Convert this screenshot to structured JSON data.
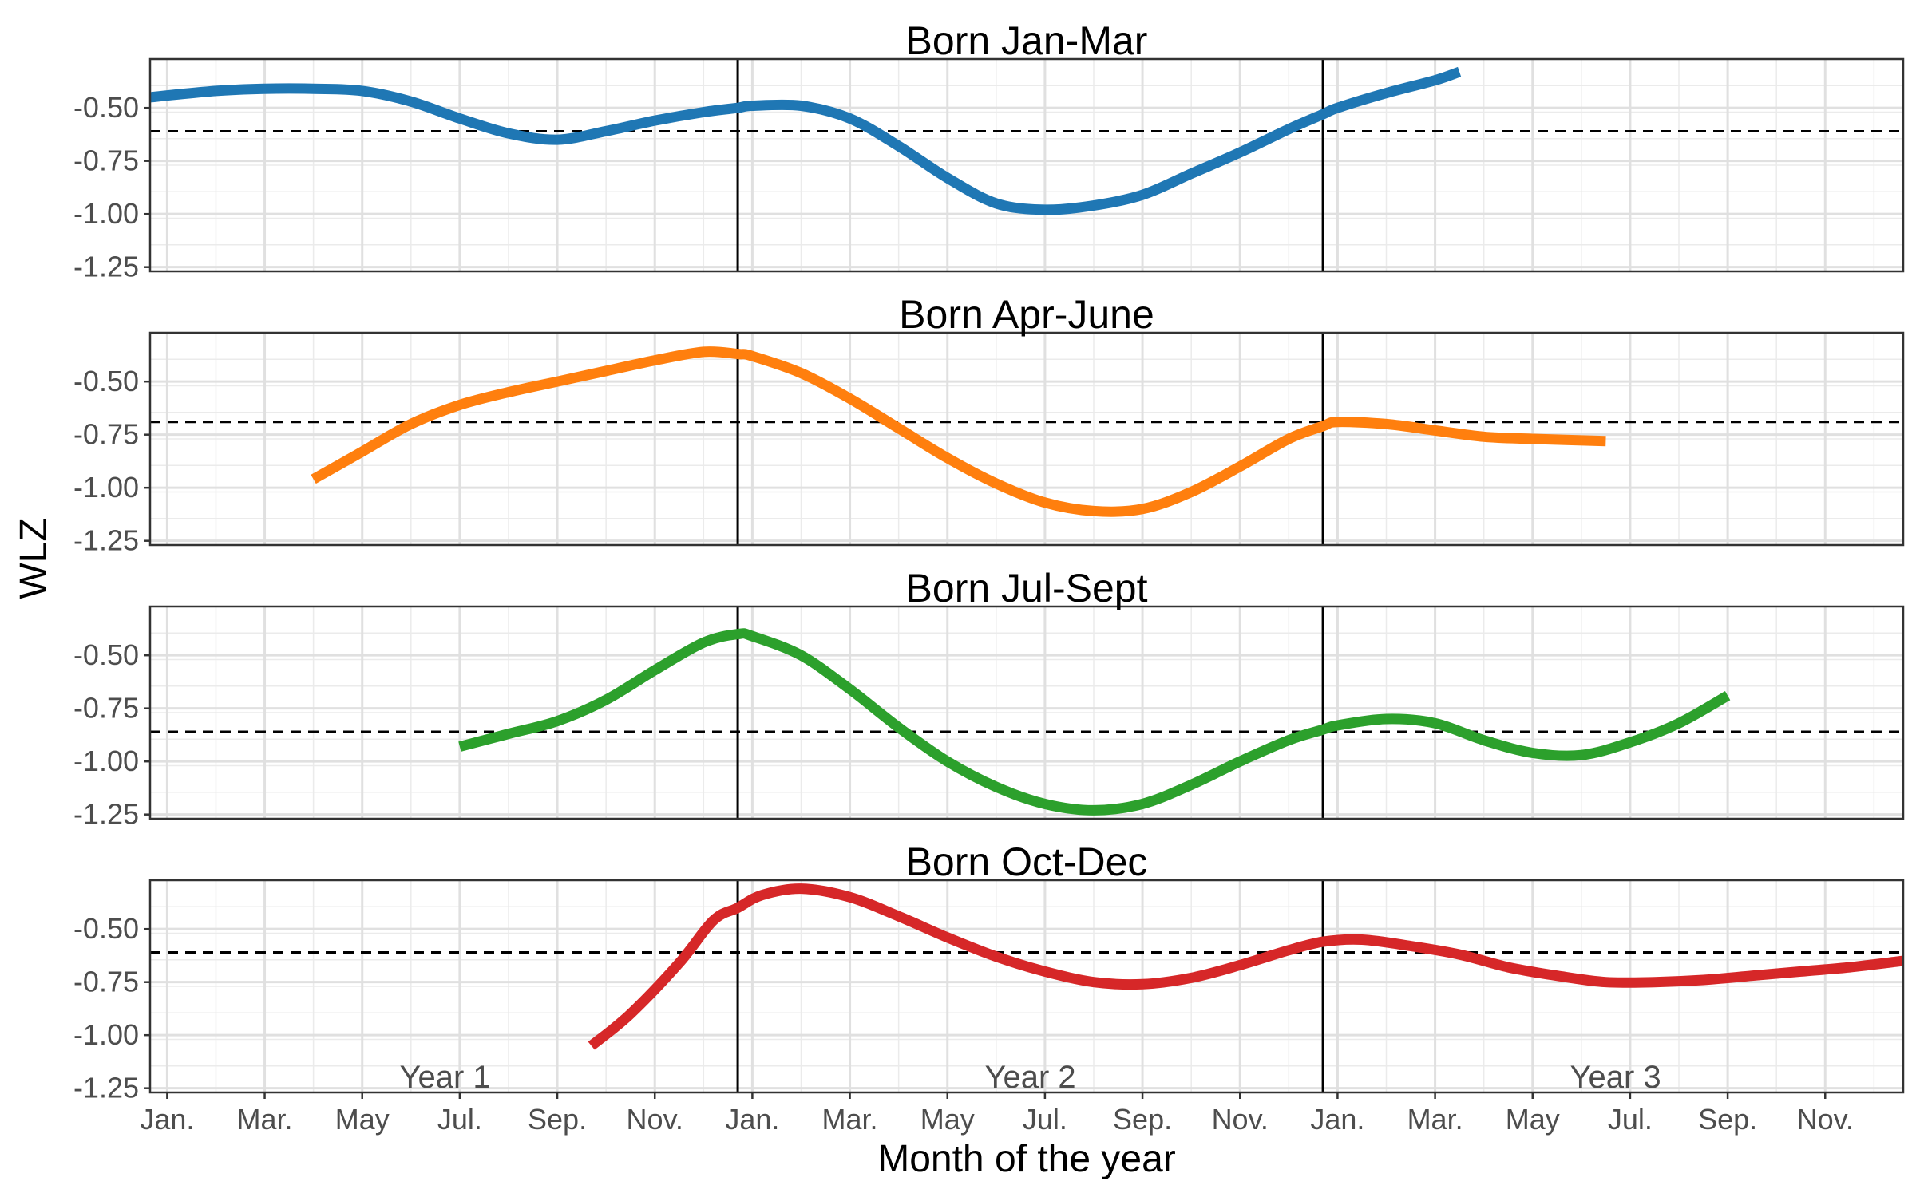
{
  "chart_data": {
    "type": "line",
    "xlabel": "Month of the year",
    "ylabel": "WLZ",
    "x_unit": "months since January of Year 1",
    "xlim": [
      -0.35,
      35.6
    ],
    "ylim": [
      -1.27,
      -0.27
    ],
    "yticks": [
      -1.25,
      -1.0,
      -0.75,
      -0.5
    ],
    "ytick_labels": [
      "-1.25",
      "-1.00",
      "-0.75",
      "-0.50"
    ],
    "xticks": [
      0,
      2,
      4,
      6,
      8,
      10,
      12,
      14,
      16,
      18,
      20,
      22,
      24,
      26,
      28,
      30,
      32,
      34
    ],
    "xtick_labels": [
      "Jan.",
      "Mar.",
      "May",
      "Jul.",
      "Sep.",
      "Nov.",
      "Jan.",
      "Mar.",
      "May",
      "Jul.",
      "Sep.",
      "Nov.",
      "Jan.",
      "Mar.",
      "May",
      "Jul.",
      "Sep.",
      "Nov."
    ],
    "year_boundaries": [
      11.7,
      23.7
    ],
    "year_labels": [
      {
        "text": "Year 1",
        "x": 5.7
      },
      {
        "text": "Year 2",
        "x": 17.7
      },
      {
        "text": "Year 3",
        "x": 29.7
      }
    ],
    "grid": true,
    "panels": [
      {
        "title": "Born Jan-Mar",
        "color": "#1f77b4",
        "mean_line": -0.61,
        "x": [
          -0.35,
          1,
          2,
          3,
          4,
          5,
          6,
          7,
          8,
          9,
          10,
          11,
          11.7,
          12,
          13,
          14,
          15,
          16,
          17,
          18,
          19,
          20,
          21,
          22,
          23,
          23.7,
          24,
          25,
          26,
          26.5
        ],
        "y": [
          -0.45,
          -0.42,
          -0.41,
          -0.41,
          -0.42,
          -0.47,
          -0.55,
          -0.62,
          -0.65,
          -0.61,
          -0.56,
          -0.52,
          -0.5,
          -0.49,
          -0.49,
          -0.55,
          -0.68,
          -0.83,
          -0.95,
          -0.98,
          -0.96,
          -0.91,
          -0.81,
          -0.71,
          -0.6,
          -0.53,
          -0.5,
          -0.43,
          -0.37,
          -0.33
        ]
      },
      {
        "title": "Born Apr-June",
        "color": "#ff7f0e",
        "mean_line": -0.69,
        "x": [
          3,
          4,
          5,
          6,
          7,
          8,
          9,
          10,
          11,
          11.7,
          12,
          13,
          14,
          15,
          16,
          17,
          18,
          19,
          20,
          21,
          22,
          23,
          23.7,
          24,
          25,
          26,
          27,
          28,
          29.5
        ],
        "y": [
          -0.96,
          -0.83,
          -0.7,
          -0.61,
          -0.55,
          -0.5,
          -0.45,
          -0.4,
          -0.36,
          -0.37,
          -0.38,
          -0.46,
          -0.58,
          -0.72,
          -0.86,
          -0.98,
          -1.07,
          -1.11,
          -1.1,
          -1.02,
          -0.9,
          -0.77,
          -0.71,
          -0.69,
          -0.7,
          -0.73,
          -0.76,
          -0.77,
          -0.78
        ]
      },
      {
        "title": "Born Jul-Sept",
        "color": "#2ca02c",
        "mean_line": -0.86,
        "x": [
          6,
          7,
          8,
          9,
          10,
          11,
          11.7,
          12,
          13,
          14,
          15,
          16,
          17,
          18,
          19,
          20,
          21,
          22,
          23,
          23.7,
          24,
          25,
          26,
          27,
          28,
          29,
          30,
          31,
          32
        ],
        "y": [
          -0.93,
          -0.87,
          -0.81,
          -0.71,
          -0.57,
          -0.44,
          -0.4,
          -0.41,
          -0.5,
          -0.66,
          -0.84,
          -1.0,
          -1.12,
          -1.2,
          -1.23,
          -1.2,
          -1.11,
          -1.0,
          -0.9,
          -0.85,
          -0.83,
          -0.8,
          -0.82,
          -0.9,
          -0.96,
          -0.97,
          -0.91,
          -0.82,
          -0.69
        ]
      },
      {
        "title": "Born Oct-Dec",
        "color": "#d62728",
        "mean_line": -0.61,
        "x": [
          8.7,
          9.5,
          10.5,
          11.2,
          11.7,
          12.2,
          13,
          14,
          15,
          16,
          17,
          18,
          19,
          20,
          21,
          22,
          23,
          23.7,
          24.5,
          25.5,
          26.5,
          27.5,
          28.5,
          29.5,
          30.5,
          31.5,
          32.5,
          33.5,
          34.5,
          35.6
        ],
        "y": [
          -1.05,
          -0.9,
          -0.66,
          -0.46,
          -0.4,
          -0.34,
          -0.31,
          -0.35,
          -0.44,
          -0.54,
          -0.63,
          -0.7,
          -0.75,
          -0.76,
          -0.73,
          -0.67,
          -0.6,
          -0.56,
          -0.55,
          -0.58,
          -0.62,
          -0.68,
          -0.72,
          -0.75,
          -0.75,
          -0.74,
          -0.72,
          -0.7,
          -0.68,
          -0.65
        ]
      }
    ]
  }
}
